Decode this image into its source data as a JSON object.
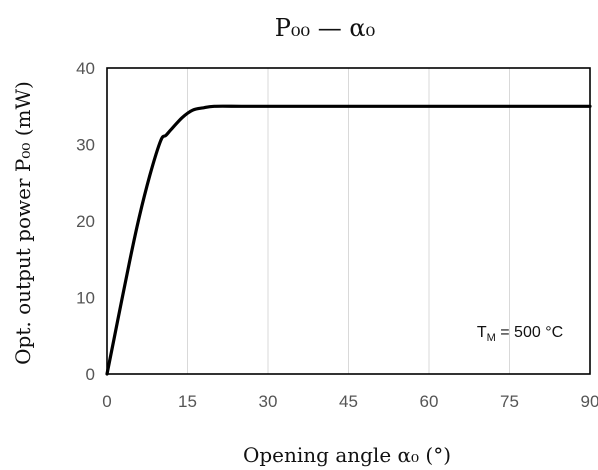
{
  "chart_data": {
    "type": "line",
    "title": "P₀₀ — α₀",
    "xlabel": "Opening angle α₀ (°)",
    "ylabel": "Opt. output power P₀₀ (mW)",
    "xlim": [
      0,
      90
    ],
    "ylim": [
      0,
      40
    ],
    "xticks": [
      0,
      15,
      30,
      45,
      60,
      75,
      90
    ],
    "yticks": [
      0,
      10,
      20,
      30,
      40
    ],
    "grid": "vertical",
    "annotation": {
      "base": "T",
      "sub": "M",
      "rest": " = 500 °C"
    },
    "series": [
      {
        "color": "#000000",
        "x": [
          0,
          2,
          4,
          6,
          8,
          10,
          11,
          12,
          14,
          16,
          18,
          20,
          25,
          30,
          45,
          60,
          75,
          90
        ],
        "y": [
          0,
          7,
          14,
          20.5,
          26,
          30.5,
          31.2,
          32,
          33.5,
          34.5,
          34.8,
          35,
          35,
          35,
          35,
          35,
          35,
          35
        ]
      }
    ]
  }
}
